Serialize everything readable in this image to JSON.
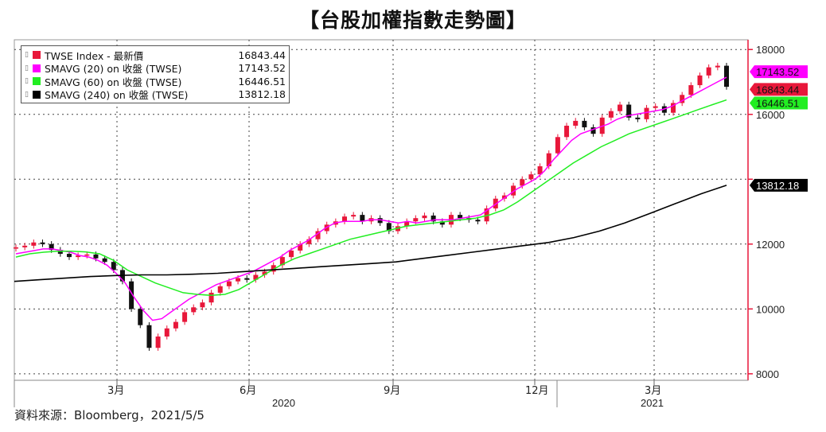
{
  "title": "【台股加權指數走勢圖】",
  "source": "資料來源：Bloomberg，2021/5/5",
  "chart_data": {
    "type": "candlestick-line",
    "x_tick_labels": [
      "3月",
      "6月",
      "9月",
      "12月",
      "3月"
    ],
    "year_labels": [
      "2020",
      "2021"
    ],
    "ylim": [
      7800,
      18300
    ],
    "y_ticks": [
      8000,
      10000,
      12000,
      14000,
      16000,
      18000
    ],
    "y_tick_labels": [
      "8000",
      "10000",
      "12000",
      "",
      "16000",
      "18000"
    ],
    "grid": true,
    "legend_position": "top-left",
    "series": [
      {
        "name": "TWSE Index - 最新價",
        "last_value": "16843.44",
        "color": "#e8173a",
        "values": [
          11900,
          11950,
          12050,
          12000,
          11820,
          11700,
          11600,
          11650,
          11680,
          11560,
          11450,
          11200,
          10850,
          10000,
          9500,
          8800,
          9150,
          9400,
          9600,
          9900,
          10050,
          10200,
          10500,
          10700,
          10850,
          10950,
          10900,
          11050,
          11150,
          11350,
          11600,
          11800,
          12000,
          12150,
          12400,
          12600,
          12700,
          12850,
          12900,
          12700,
          12800,
          12650,
          12400,
          12550,
          12700,
          12800,
          12880,
          12700,
          12600,
          12900,
          12800,
          12750,
          12700,
          13100,
          13400,
          13500,
          13800,
          14000,
          14150,
          14400,
          14800,
          15300,
          15650,
          15800,
          15600,
          15400,
          15900,
          16100,
          16300,
          15900,
          15850,
          16200,
          16250,
          16050,
          16350,
          16600,
          16900,
          17200,
          17450,
          17500,
          16850
        ]
      },
      {
        "name": "SMAVG (20)  on 收盤 (TWSE)",
        "last_value": "17143.52",
        "color": "#ff00ff",
        "values": [
          11700,
          11750,
          11800,
          11850,
          11850,
          11800,
          11750,
          11650,
          11600,
          11500,
          11350,
          11100,
          10800,
          10350,
          9950,
          9650,
          9700,
          9900,
          10100,
          10300,
          10450,
          10600,
          10750,
          10850,
          10950,
          11050,
          11150,
          11300,
          11450,
          11600,
          11800,
          11950,
          12100,
          12300,
          12500,
          12650,
          12700,
          12700,
          12700,
          12750,
          12750,
          12700,
          12650,
          12700,
          12650,
          12700,
          12750,
          12750,
          12750,
          12800,
          12850,
          12900,
          13100,
          13300,
          13500,
          13700,
          13850,
          14000,
          14250,
          14600,
          14900,
          15200,
          15400,
          15500,
          15600,
          15700,
          15850,
          15950,
          16000,
          16050,
          16100,
          16150,
          16250,
          16400,
          16550,
          16700,
          16850,
          17000,
          17143.52
        ]
      },
      {
        "name": "SMAVG (60)  on 收盤 (TWSE)",
        "last_value": "16446.51",
        "color": "#22ee22",
        "values": [
          11600,
          11700,
          11750,
          11780,
          11780,
          11760,
          11700,
          11500,
          11200,
          11000,
          10800,
          10650,
          10500,
          10450,
          10420,
          10450,
          10600,
          10850,
          11100,
          11350,
          11550,
          11700,
          11850,
          12000,
          12150,
          12250,
          12350,
          12450,
          12550,
          12600,
          12650,
          12700,
          12750,
          12800,
          12900,
          13050,
          13300,
          13600,
          13900,
          14200,
          14500,
          14750,
          15000,
          15200,
          15400,
          15550,
          15700,
          15850,
          16000,
          16150,
          16300,
          16446.51
        ]
      },
      {
        "name": "SMAVG (240)  on 收盤 (TWSE)",
        "last_value": "13812.18",
        "color": "#000000",
        "values": [
          10850,
          10900,
          10950,
          11000,
          11030,
          11050,
          11050,
          11070,
          11100,
          11150,
          11200,
          11250,
          11300,
          11350,
          11400,
          11450,
          11550,
          11650,
          11750,
          11850,
          11950,
          12050,
          12200,
          12400,
          12650,
          12950,
          13250,
          13550,
          13812.18
        ]
      }
    ]
  }
}
